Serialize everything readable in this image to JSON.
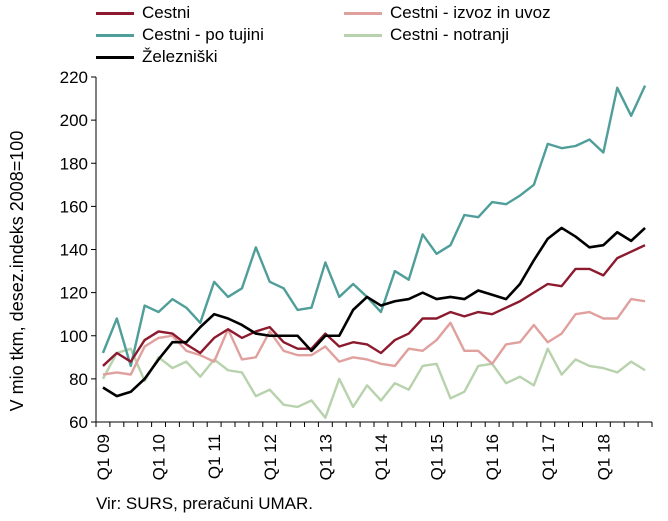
{
  "chart_data": {
    "type": "line",
    "ylabel": "V mio tkm, desez.indeks 2008=100",
    "ylim": [
      60,
      220
    ],
    "yticks": [
      60,
      80,
      100,
      120,
      140,
      160,
      180,
      200,
      220
    ],
    "grid": false,
    "legend_position": "top",
    "x": [
      "Q1 09",
      "Q2 09",
      "Q3 09",
      "Q4 09",
      "Q1 10",
      "Q2 10",
      "Q3 10",
      "Q4 10",
      "Q1 11",
      "Q2 11",
      "Q3 11",
      "Q4 11",
      "Q1 12",
      "Q2 12",
      "Q3 12",
      "Q4 12",
      "Q1 13",
      "Q2 13",
      "Q3 13",
      "Q4 13",
      "Q1 14",
      "Q2 14",
      "Q3 14",
      "Q4 14",
      "Q1 15",
      "Q2 15",
      "Q3 15",
      "Q4 15",
      "Q1 16",
      "Q2 16",
      "Q3 16",
      "Q4 16",
      "Q1 17",
      "Q2 17",
      "Q3 17",
      "Q4 17",
      "Q1 18",
      "Q2 18",
      "Q3 18",
      "Q4 18"
    ],
    "xticklabels": [
      "Q1 09",
      "Q1 10",
      "Q1 11",
      "Q1 12",
      "Q1 13",
      "Q1 14",
      "Q1 15",
      "Q1 16",
      "Q1 17",
      "Q1 18"
    ],
    "series": [
      {
        "name": "Cestni",
        "color": "#8b1a2e",
        "values": [
          86,
          92,
          88,
          98,
          102,
          101,
          96,
          92,
          99,
          103,
          99,
          102,
          104,
          97,
          94,
          94,
          101,
          95,
          97,
          96,
          92,
          98,
          101,
          108,
          108,
          111,
          109,
          111,
          110,
          113,
          116,
          120,
          124,
          123,
          131,
          131,
          128,
          136,
          139,
          142
        ]
      },
      {
        "name": "Cestni - izvoz in uvoz",
        "color": "#e0a19e",
        "values": [
          82,
          83,
          82,
          95,
          99,
          100,
          93,
          91,
          88,
          103,
          89,
          90,
          102,
          93,
          91,
          91,
          95,
          88,
          90,
          89,
          87,
          86,
          94,
          93,
          98,
          106,
          93,
          93,
          87,
          96,
          97,
          105,
          97,
          101,
          110,
          111,
          108,
          108,
          117,
          116
        ]
      },
      {
        "name": "Cestni - po tujini",
        "color": "#4f9e99",
        "values": [
          92,
          108,
          86,
          114,
          111,
          117,
          113,
          106,
          125,
          118,
          122,
          141,
          125,
          122,
          112,
          113,
          134,
          118,
          124,
          118,
          111,
          130,
          126,
          147,
          138,
          142,
          156,
          155,
          162,
          161,
          165,
          170,
          189,
          187,
          188,
          191,
          185,
          215,
          202,
          216
        ]
      },
      {
        "name": "Cestni - notranji",
        "color": "#b7d2ac",
        "values": [
          80,
          92,
          94,
          79,
          90,
          85,
          88,
          81,
          89,
          84,
          83,
          72,
          75,
          68,
          67,
          70,
          62,
          80,
          67,
          77,
          70,
          78,
          75,
          86,
          87,
          71,
          74,
          86,
          87,
          78,
          81,
          77,
          94,
          82,
          89,
          86,
          85,
          83,
          88,
          84
        ]
      },
      {
        "name": "Železniški",
        "color": "#000000",
        "values": [
          76,
          72,
          74,
          80,
          89,
          97,
          97,
          104,
          110,
          108,
          105,
          101,
          100,
          100,
          100,
          93,
          100,
          100,
          112,
          118,
          114,
          116,
          117,
          120,
          117,
          118,
          117,
          121,
          119,
          117,
          124,
          135,
          145,
          150,
          146,
          141,
          142,
          148,
          144,
          150
        ]
      }
    ]
  },
  "source": "Vir: SURS, preračuni UMAR."
}
